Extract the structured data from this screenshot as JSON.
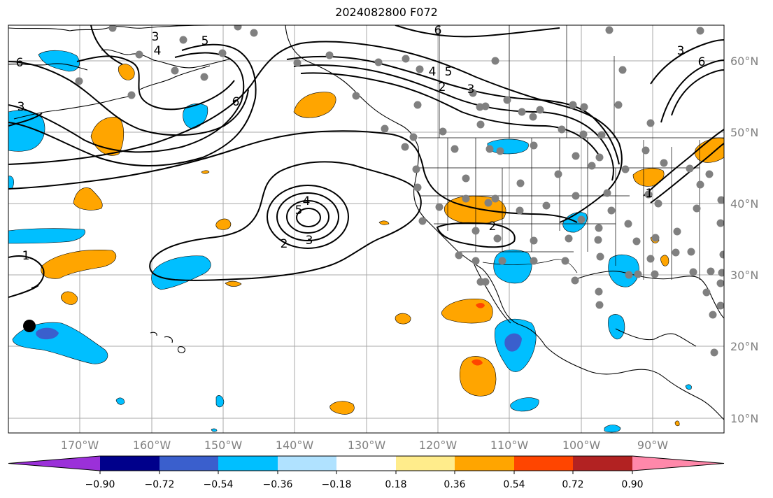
{
  "title": "2024082800 F072",
  "lon_labels": [
    "170°W",
    "160°W",
    "150°W",
    "140°W",
    "130°W",
    "120°W",
    "110°W",
    "100°W",
    "90°W"
  ],
  "lat_labels": [
    "60°N",
    "50°N",
    "40°N",
    "30°N",
    "20°N",
    "10°N"
  ],
  "colorbar": {
    "labels": [
      "−0.90",
      "−0.72",
      "−0.54",
      "−0.36",
      "−0.18",
      "0.18",
      "0.36",
      "0.54",
      "0.72",
      "0.90"
    ],
    "colors": [
      "#9b30d9",
      "#00008b",
      "#3a5fcd",
      "#00bfff",
      "#b0e2ff",
      "#ffffff",
      "#ffec8b",
      "#ffa500",
      "#ff4500",
      "#b22222",
      "#ff88aa"
    ]
  },
  "contour_labels": [
    "6",
    "5",
    "4",
    "3",
    "2",
    "1"
  ],
  "colors": {
    "positive": "#ffa500",
    "negative": "#00bfff",
    "strong_negative": "#3a5fcd",
    "strong_positive": "#ff4500",
    "station_dot": "#808080",
    "grid": "#a0a0a0"
  },
  "map": {
    "type": "weather-forecast-anomaly-map",
    "region": "North Pacific / North America",
    "projection": "plate-carree",
    "lon_range": [
      -180,
      -80
    ],
    "lat_range": [
      8,
      65
    ]
  }
}
